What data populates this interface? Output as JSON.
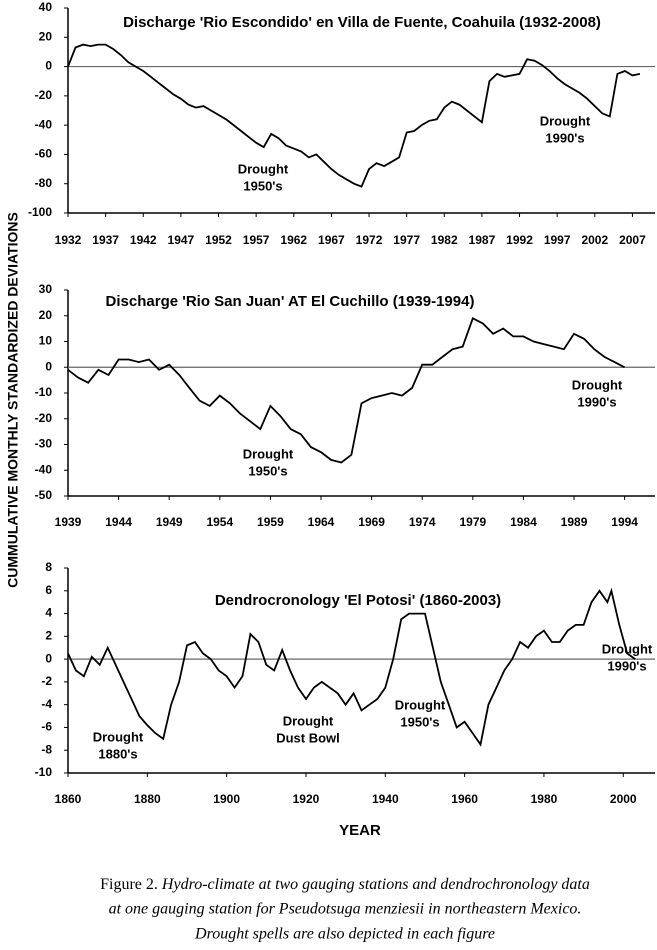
{
  "chart_data": [
    {
      "type": "line",
      "title": "Discharge 'Rio Escondido' en Villa de Fuente, Coahuila (1932-2008)",
      "x": [
        1932,
        1933,
        1934,
        1935,
        1936,
        1937,
        1938,
        1939,
        1940,
        1941,
        1942,
        1943,
        1944,
        1945,
        1946,
        1947,
        1948,
        1949,
        1950,
        1951,
        1952,
        1953,
        1954,
        1955,
        1956,
        1957,
        1958,
        1959,
        1960,
        1961,
        1962,
        1963,
        1964,
        1965,
        1966,
        1967,
        1968,
        1969,
        1970,
        1971,
        1972,
        1973,
        1974,
        1975,
        1976,
        1977,
        1978,
        1979,
        1980,
        1981,
        1982,
        1983,
        1984,
        1985,
        1986,
        1987,
        1988,
        1989,
        1990,
        1991,
        1992,
        1993,
        1994,
        1995,
        1996,
        1997,
        1998,
        1999,
        2000,
        2001,
        2002,
        2003,
        2004,
        2005,
        2006,
        2007,
        2008
      ],
      "values": [
        0,
        13,
        15,
        14,
        15,
        15,
        12,
        8,
        3,
        0,
        -3,
        -7,
        -11,
        -15,
        -19,
        -22,
        -26,
        -28,
        -27,
        -30,
        -33,
        -36,
        -40,
        -44,
        -48,
        -52,
        -55,
        -46,
        -49,
        -54,
        -56,
        -58,
        -62,
        -60,
        -65,
        -70,
        -74,
        -77,
        -80,
        -82,
        -70,
        -66,
        -68,
        -65,
        -62,
        -45,
        -44,
        -40,
        -37,
        -36,
        -28,
        -24,
        -26,
        -30,
        -34,
        -38,
        -10,
        -5,
        -7,
        -6,
        -5,
        5,
        4,
        1,
        -3,
        -8,
        -12,
        -15,
        -18,
        -22,
        -27,
        -32,
        -34,
        -5,
        -3,
        -6,
        -5
      ],
      "color": "#000000",
      "hline": 0,
      "xlim": [
        1932,
        2010
      ],
      "ylim": [
        -100,
        40
      ],
      "xticks": [
        1932,
        1937,
        1942,
        1947,
        1952,
        1957,
        1962,
        1967,
        1972,
        1977,
        1982,
        1987,
        1992,
        1997,
        2002,
        2007
      ],
      "yticks": [
        -100,
        -80,
        -60,
        -40,
        -20,
        0,
        20,
        40
      ],
      "annotations": [
        [
          "Drought",
          "1950's"
        ],
        [
          "Drought",
          "1990's"
        ]
      ]
    },
    {
      "type": "line",
      "title": "Discharge 'Rio San Juan' AT El Cuchillo (1939-1994)",
      "x": [
        1939,
        1940,
        1941,
        1942,
        1943,
        1944,
        1945,
        1946,
        1947,
        1948,
        1949,
        1950,
        1951,
        1952,
        1953,
        1954,
        1955,
        1956,
        1957,
        1958,
        1959,
        1960,
        1961,
        1962,
        1963,
        1964,
        1965,
        1966,
        1967,
        1968,
        1969,
        1970,
        1971,
        1972,
        1973,
        1974,
        1975,
        1976,
        1977,
        1978,
        1979,
        1980,
        1981,
        1982,
        1983,
        1984,
        1985,
        1986,
        1987,
        1988,
        1989,
        1990,
        1991,
        1992,
        1993,
        1994
      ],
      "values": [
        -1,
        -4,
        -6,
        -1,
        -3,
        3,
        3,
        2,
        3,
        -1,
        1,
        -3,
        -8,
        -13,
        -15,
        -11,
        -14,
        -18,
        -21,
        -24,
        -15,
        -19,
        -24,
        -26,
        -31,
        -33,
        -36,
        -37,
        -34,
        -14,
        -12,
        -11,
        -10,
        -11,
        -8,
        1,
        1,
        4,
        7,
        8,
        19,
        17,
        13,
        15,
        12,
        12,
        10,
        9,
        8,
        7,
        13,
        11,
        7,
        4,
        2,
        0
      ],
      "color": "#000000",
      "hline": 0,
      "xlim": [
        1939,
        1997
      ],
      "ylim": [
        -50,
        30
      ],
      "xticks": [
        1939,
        1944,
        1949,
        1954,
        1959,
        1964,
        1969,
        1974,
        1979,
        1984,
        1989,
        1994
      ],
      "yticks": [
        -50,
        -40,
        -30,
        -20,
        -10,
        0,
        10,
        20,
        30
      ],
      "annotations": [
        [
          "Drought",
          "1950's"
        ],
        [
          "Drought",
          "1990's"
        ]
      ]
    },
    {
      "type": "line",
      "title": "Dendrocronology 'El Potosi' (1860-2003)",
      "x": [
        1860,
        1862,
        1864,
        1866,
        1868,
        1870,
        1872,
        1874,
        1876,
        1878,
        1880,
        1882,
        1884,
        1886,
        1888,
        1890,
        1892,
        1894,
        1896,
        1898,
        1900,
        1902,
        1904,
        1906,
        1908,
        1910,
        1912,
        1914,
        1916,
        1918,
        1920,
        1922,
        1924,
        1926,
        1928,
        1930,
        1932,
        1934,
        1936,
        1938,
        1940,
        1942,
        1944,
        1946,
        1948,
        1950,
        1952,
        1954,
        1956,
        1958,
        1960,
        1962,
        1964,
        1966,
        1968,
        1970,
        1972,
        1974,
        1976,
        1978,
        1980,
        1982,
        1984,
        1986,
        1988,
        1990,
        1992,
        1994,
        1996,
        1997,
        1999,
        2001,
        2003
      ],
      "values": [
        0.5,
        -1,
        -1.5,
        0.2,
        -0.5,
        1,
        -0.5,
        -2,
        -3.5,
        -5,
        -5.8,
        -6.5,
        -7,
        -4,
        -2,
        1.2,
        1.5,
        0.5,
        0,
        -1,
        -1.5,
        -2.5,
        -1.5,
        2.2,
        1.5,
        -0.5,
        -1,
        0.8,
        -1,
        -2.5,
        -3.5,
        -2.5,
        -2,
        -2.5,
        -3,
        -4,
        -3,
        -4.5,
        -4,
        -3.5,
        -2.5,
        0,
        3.5,
        4,
        4,
        4,
        1,
        -2,
        -4,
        -6,
        -5.5,
        -6.5,
        -7.5,
        -4,
        -2.5,
        -1,
        0,
        1.5,
        1,
        2,
        2.5,
        1.5,
        1.5,
        2.5,
        3,
        3,
        5,
        6,
        5,
        6,
        3,
        0.5,
        0
      ],
      "color": "#000000",
      "hline": 0,
      "xlim": [
        1860,
        2008
      ],
      "ylim": [
        -10,
        8
      ],
      "xticks": [
        1860,
        1880,
        1900,
        1920,
        1940,
        1960,
        1980,
        2000
      ],
      "yticks": [
        -10,
        -8,
        -6,
        -4,
        -2,
        0,
        2,
        4,
        6,
        8
      ],
      "annotations": [
        [
          "Drought",
          "1880's"
        ],
        [
          "Drought",
          "Dust Bowl"
        ],
        [
          "Drought",
          "1950's"
        ],
        [
          "Drought",
          "1990's"
        ]
      ]
    }
  ],
  "y_axis_label": "CUMMULATIVE MONTHLY STANDARDIZED DEVIATIONS",
  "x_axis_label": "YEAR",
  "caption": {
    "label": "Figure 2.",
    "lines": [
      "Hydro-climate at two gauging stations and dendrochronology data",
      "at one gauging station for Pseudotsuga menziesii in northeastern Mexico.",
      "Drought spells are also depicted in each figure"
    ]
  }
}
